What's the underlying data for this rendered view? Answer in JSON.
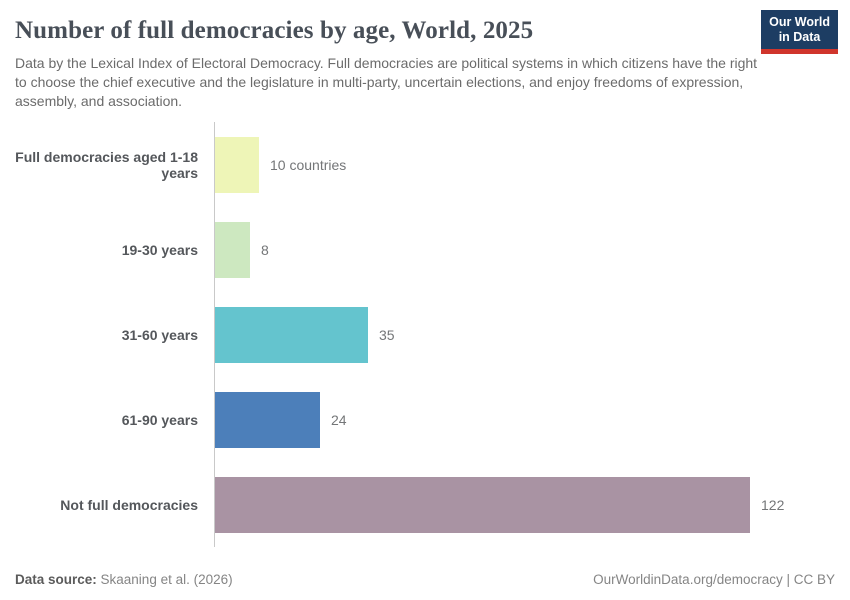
{
  "header": {
    "title": "Number of full democracies by age, World, 2025",
    "subtitle": "Data by the Lexical Index of Electoral Democracy. Full democracies are political systems in which citizens have the right to choose the chief executive and the legislature in multi-party, uncertain elections, and enjoy freedoms of expression, assembly, and association.",
    "logo": {
      "line1": "Our World",
      "line2": "in Data",
      "bg_color": "#1d3d63",
      "accent_color": "#d0352c"
    }
  },
  "chart_data": {
    "type": "bar",
    "orientation": "horizontal",
    "title": "Number of full democracies by age, World, 2025",
    "categories": [
      "Full democracies aged 1-18 years",
      "19-30 years",
      "31-60 years",
      "61-90 years",
      "Not full democracies"
    ],
    "values": [
      10,
      8,
      35,
      24,
      122
    ],
    "value_labels": [
      "10 countries",
      "8",
      "35",
      "24",
      "122"
    ],
    "bar_colors": [
      "#eef5b7",
      "#cde8c0",
      "#64c4ce",
      "#4c7fba",
      "#a993a3"
    ],
    "xlim": [
      0,
      122
    ],
    "grid": false,
    "legend": false
  },
  "footer": {
    "source_label": "Data source:",
    "source_value": " Skaaning et al. (2026)",
    "link": "OurWorldinData.org/democracy | CC BY"
  }
}
